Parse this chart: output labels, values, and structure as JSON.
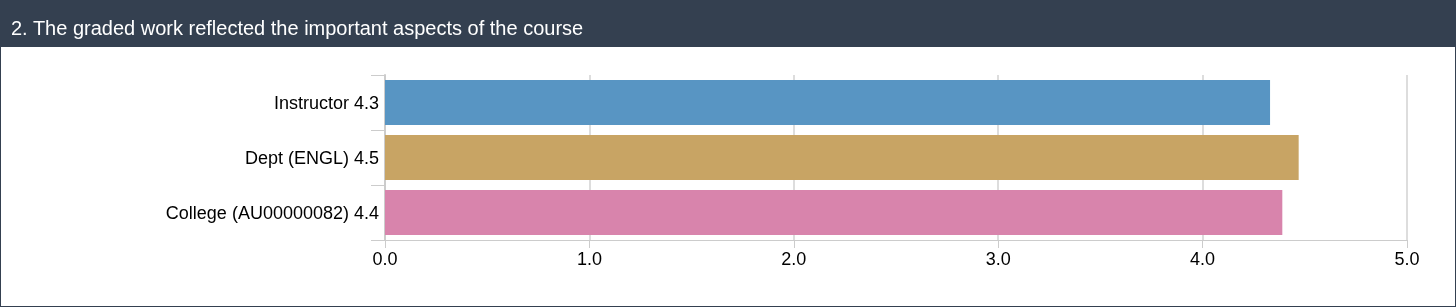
{
  "chart_data": {
    "type": "bar",
    "orientation": "horizontal",
    "title": "2. The graded work reflected the important aspects of the course",
    "categories": [
      "Instructor 4.3",
      "Dept (ENGL) 4.5",
      "College (AU00000082) 4.4"
    ],
    "values": [
      4.33,
      4.47,
      4.39
    ],
    "colors": [
      "#5895c3",
      "#c8a464",
      "#d884ac"
    ],
    "xlim": [
      0,
      5
    ],
    "xticks": [
      {
        "value": 0,
        "label": "0.0"
      },
      {
        "value": 1,
        "label": "1.0"
      },
      {
        "value": 2,
        "label": "2.0"
      },
      {
        "value": 3,
        "label": "3.0"
      },
      {
        "value": 4,
        "label": "4.0"
      },
      {
        "value": 5,
        "label": "5.0"
      }
    ],
    "grid": "x"
  }
}
